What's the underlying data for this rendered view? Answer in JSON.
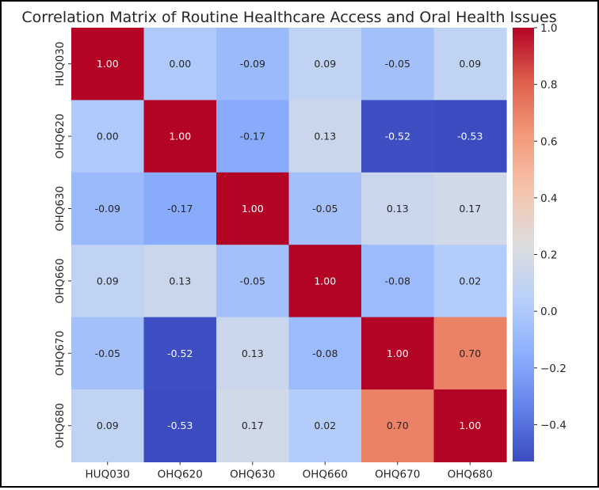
{
  "chart_data": {
    "type": "heatmap",
    "title": "Correlation Matrix of Routine Healthcare Access and Oral Health Issues",
    "xlabel": "",
    "ylabel": "",
    "x_categories": [
      "HUQ030",
      "OHQ620",
      "OHQ630",
      "OHQ660",
      "OHQ670",
      "OHQ680"
    ],
    "y_categories": [
      "HUQ030",
      "OHQ620",
      "OHQ630",
      "OHQ660",
      "OHQ670",
      "OHQ680"
    ],
    "matrix": [
      [
        1.0,
        0.0,
        -0.09,
        0.09,
        -0.05,
        0.09
      ],
      [
        0.0,
        1.0,
        -0.17,
        0.13,
        -0.52,
        -0.53
      ],
      [
        -0.09,
        -0.17,
        1.0,
        -0.05,
        0.13,
        0.17
      ],
      [
        0.09,
        0.13,
        -0.05,
        1.0,
        -0.08,
        0.02
      ],
      [
        -0.05,
        -0.52,
        0.13,
        -0.08,
        1.0,
        0.7
      ],
      [
        0.09,
        -0.53,
        0.17,
        0.02,
        0.7,
        1.0
      ]
    ],
    "cell_labels": [
      [
        "1.00",
        "0.00",
        "-0.09",
        "0.09",
        "-0.05",
        "0.09"
      ],
      [
        "0.00",
        "1.00",
        "-0.17",
        "0.13",
        "-0.52",
        "-0.53"
      ],
      [
        "-0.09",
        "-0.17",
        "1.00",
        "-0.05",
        "0.13",
        "0.17"
      ],
      [
        "0.09",
        "0.13",
        "-0.05",
        "1.00",
        "-0.08",
        "0.02"
      ],
      [
        "-0.05",
        "-0.52",
        "0.13",
        "-0.08",
        "1.00",
        "0.70"
      ],
      [
        "0.09",
        "-0.53",
        "0.17",
        "0.02",
        "0.70",
        "1.00"
      ]
    ],
    "colormap": "coolwarm",
    "colorbar": {
      "range": [
        -0.53,
        1.0
      ],
      "ticks": [
        -0.4,
        -0.2,
        0.0,
        0.2,
        0.4,
        0.6,
        0.8,
        1.0
      ],
      "tick_labels": [
        "−0.4",
        "−0.2",
        "0.0",
        "0.2",
        "0.4",
        "0.6",
        "0.8",
        "1.0"
      ]
    }
  }
}
